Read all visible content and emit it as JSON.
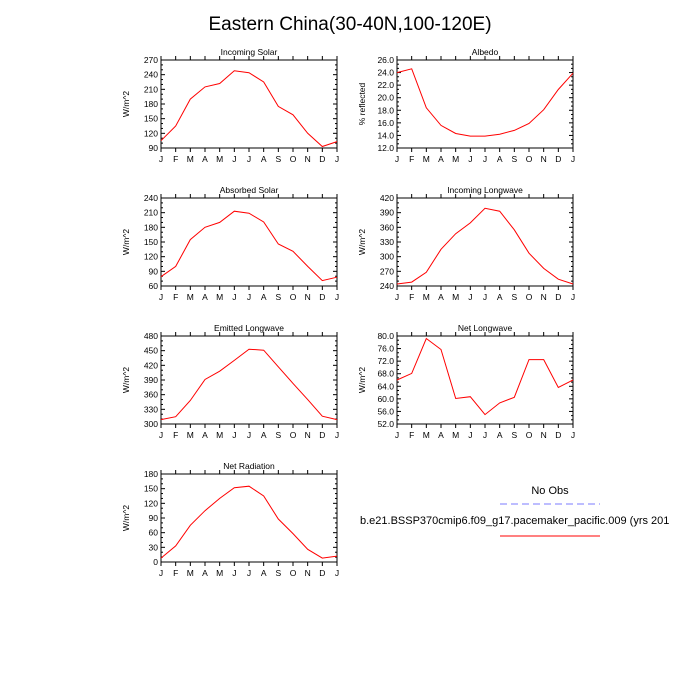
{
  "figure_title": "Eastern China(30-40N,100-120E)",
  "months": [
    "J",
    "F",
    "M",
    "A",
    "M",
    "J",
    "J",
    "A",
    "S",
    "O",
    "N",
    "D",
    "J"
  ],
  "colors": {
    "model_line": "#ff0000",
    "obs_line": "#7b7bff",
    "axis": "#000000"
  },
  "legend": {
    "obs_label": "No Obs",
    "model_label": "b.e21.BSSP370cmip6.f09_g17.pacemaker_pacific.009 (yrs 201"
  },
  "chart_data": [
    {
      "type": "line",
      "title": "Incoming Solar",
      "ylabel": "W/m^2",
      "xlabel": "",
      "ylim": [
        90,
        270
      ],
      "yticks": [
        "90",
        "120",
        "150",
        "180",
        "210",
        "240",
        "270"
      ],
      "ytick_values": [
        90,
        120,
        150,
        180,
        210,
        240,
        270
      ],
      "categories": [
        "J",
        "F",
        "M",
        "A",
        "M",
        "J",
        "J",
        "A",
        "S",
        "O",
        "N",
        "D",
        "J"
      ],
      "series": [
        {
          "name": "model",
          "values": [
            105,
            135,
            190,
            215,
            222,
            248,
            244,
            225,
            175,
            158,
            120,
            93,
            103
          ]
        }
      ]
    },
    {
      "type": "line",
      "title": "Albedo",
      "ylabel": "% reflected",
      "xlabel": "",
      "ylim": [
        12,
        26
      ],
      "yticks": [
        "12.0",
        "14.0",
        "16.0",
        "18.0",
        "20.0",
        "22.0",
        "24.0",
        "26.0"
      ],
      "ytick_values": [
        12,
        14,
        16,
        18,
        20,
        22,
        24,
        26
      ],
      "categories": [
        "J",
        "F",
        "M",
        "A",
        "M",
        "J",
        "J",
        "A",
        "S",
        "O",
        "N",
        "D",
        "J"
      ],
      "series": [
        {
          "name": "model",
          "values": [
            24.0,
            24.6,
            18.4,
            15.6,
            14.3,
            13.9,
            13.9,
            14.2,
            14.8,
            15.9,
            18.1,
            21.3,
            23.9
          ]
        }
      ]
    },
    {
      "type": "line",
      "title": "Absorbed Solar",
      "ylabel": "W/m^2",
      "xlabel": "",
      "ylim": [
        60,
        240
      ],
      "yticks": [
        "60",
        "90",
        "120",
        "150",
        "180",
        "210",
        "240"
      ],
      "ytick_values": [
        60,
        90,
        120,
        150,
        180,
        210,
        240
      ],
      "categories": [
        "J",
        "F",
        "M",
        "A",
        "M",
        "J",
        "J",
        "A",
        "S",
        "O",
        "N",
        "D",
        "J"
      ],
      "series": [
        {
          "name": "model",
          "values": [
            79,
            100,
            155,
            180,
            190,
            213,
            209,
            191,
            146,
            131,
            100,
            71,
            78
          ]
        }
      ]
    },
    {
      "type": "line",
      "title": "Incoming Longwave",
      "ylabel": "W/m^2",
      "xlabel": "",
      "ylim": [
        240,
        420
      ],
      "yticks": [
        "240",
        "270",
        "300",
        "330",
        "360",
        "390",
        "420"
      ],
      "ytick_values": [
        240,
        270,
        300,
        330,
        360,
        390,
        420
      ],
      "categories": [
        "J",
        "F",
        "M",
        "A",
        "M",
        "J",
        "J",
        "A",
        "S",
        "O",
        "N",
        "D",
        "J"
      ],
      "series": [
        {
          "name": "model",
          "values": [
            244,
            248,
            268,
            315,
            347,
            369,
            399,
            393,
            355,
            307,
            276,
            254,
            244
          ]
        }
      ]
    },
    {
      "type": "line",
      "title": "Emitted Longwave",
      "ylabel": "W/m^2",
      "xlabel": "",
      "ylim": [
        300,
        480
      ],
      "yticks": [
        "300",
        "330",
        "360",
        "390",
        "420",
        "450",
        "480"
      ],
      "ytick_values": [
        300,
        330,
        360,
        390,
        420,
        450,
        480
      ],
      "categories": [
        "J",
        "F",
        "M",
        "A",
        "M",
        "J",
        "J",
        "A",
        "S",
        "O",
        "N",
        "D",
        "J"
      ],
      "series": [
        {
          "name": "model",
          "values": [
            309,
            315,
            348,
            391,
            408,
            430,
            453,
            451,
            417,
            383,
            350,
            316,
            309
          ]
        }
      ]
    },
    {
      "type": "line",
      "title": "Net Longwave",
      "ylabel": "W/m^2",
      "xlabel": "",
      "ylim": [
        52,
        80
      ],
      "yticks": [
        "52.0",
        "56.0",
        "60.0",
        "64.0",
        "68.0",
        "72.0",
        "76.0",
        "80.0"
      ],
      "ytick_values": [
        52,
        56,
        60,
        64,
        68,
        72,
        76,
        80
      ],
      "categories": [
        "J",
        "F",
        "M",
        "A",
        "M",
        "J",
        "J",
        "A",
        "S",
        "O",
        "N",
        "D",
        "J"
      ],
      "series": [
        {
          "name": "model",
          "values": [
            66.0,
            68.1,
            79.2,
            75.7,
            60.1,
            60.7,
            55.0,
            58.7,
            60.5,
            72.5,
            72.5,
            63.6,
            66.0
          ]
        }
      ]
    },
    {
      "type": "line",
      "title": "Net Radiation",
      "ylabel": "W/m^2",
      "xlabel": "",
      "ylim": [
        0,
        180
      ],
      "yticks": [
        "0",
        "30",
        "60",
        "90",
        "120",
        "150",
        "180"
      ],
      "ytick_values": [
        0,
        30,
        60,
        90,
        120,
        150,
        180
      ],
      "categories": [
        "J",
        "F",
        "M",
        "A",
        "M",
        "J",
        "J",
        "A",
        "S",
        "O",
        "N",
        "D",
        "J"
      ],
      "series": [
        {
          "name": "model",
          "values": [
            8,
            33,
            75,
            105,
            130,
            152,
            155,
            135,
            88,
            58,
            26,
            8,
            12
          ]
        }
      ]
    }
  ]
}
